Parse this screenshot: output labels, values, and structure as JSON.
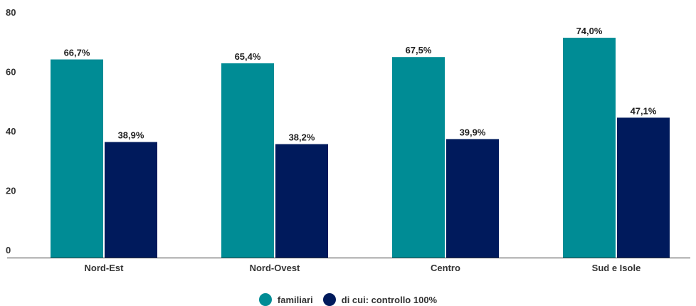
{
  "chart_data": {
    "type": "bar",
    "categories": [
      "Nord-Est",
      "Nord-Ovest",
      "Centro",
      "Sud e Isole"
    ],
    "series": [
      {
        "name": "familiari",
        "values": [
          66.7,
          65.4,
          67.5,
          74.0
        ],
        "labels": [
          "66,7%",
          "65,4%",
          "67,5%",
          "74,0%"
        ],
        "color": "#008c95"
      },
      {
        "name": "di cui: controllo 100%",
        "values": [
          38.9,
          38.2,
          39.9,
          47.1
        ],
        "labels": [
          "38,9%",
          "38,2%",
          "39,9%",
          "47,1%"
        ],
        "color": "#001a5c"
      }
    ],
    "ylim": [
      0,
      80
    ],
    "yticks": [
      0,
      20,
      40,
      60,
      80
    ],
    "title": "",
    "xlabel": "",
    "ylabel": "",
    "grid": false,
    "legend_position": "bottom-center"
  }
}
